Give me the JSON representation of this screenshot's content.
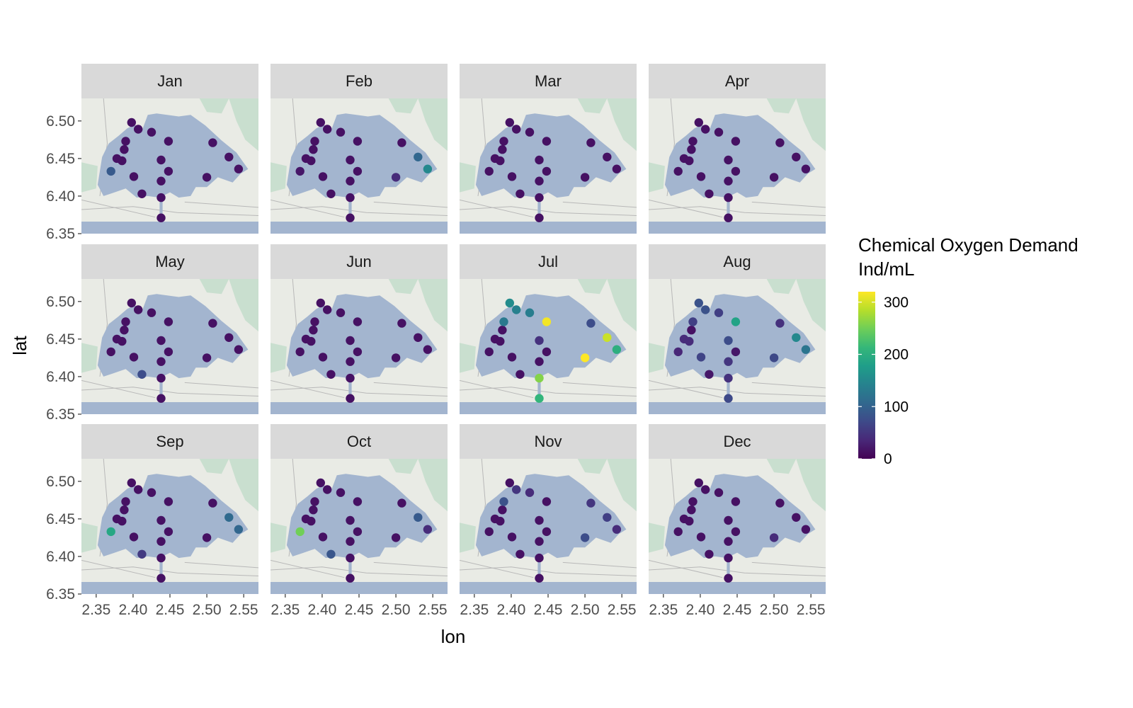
{
  "chart_data": {
    "type": "scatter",
    "facet_by": "month",
    "panels": [
      "Jan",
      "Feb",
      "Mar",
      "Apr",
      "May",
      "Jun",
      "Jul",
      "Aug",
      "Sep",
      "Oct",
      "Nov",
      "Dec"
    ],
    "xlabel": "lon",
    "ylabel": "lat",
    "xlim": [
      2.33,
      2.57
    ],
    "ylim": [
      6.35,
      6.53
    ],
    "x_ticks": [
      2.35,
      2.4,
      2.45,
      2.5,
      2.55
    ],
    "x_tick_labels": [
      "2.35",
      "2.40",
      "2.45",
      "2.50",
      "2.55"
    ],
    "y_ticks": [
      6.35,
      6.4,
      6.45,
      6.5
    ],
    "y_tick_labels": [
      "6.35",
      "6.40",
      "6.45",
      "6.50"
    ],
    "basemap": "lagoon",
    "colors": {
      "water": "#a3b5cf",
      "land": "#e9ebe5",
      "vegetation": "#c9dfcf",
      "strip": "#d9d9d9",
      "viridis": [
        "#440154",
        "#482878",
        "#3e4a89",
        "#31688e",
        "#26828e",
        "#1f9e89",
        "#35b779",
        "#6ece58",
        "#b5de2b",
        "#fde725"
      ]
    },
    "stations": [
      {
        "lon": 2.37,
        "lat": 6.433
      },
      {
        "lon": 2.378,
        "lat": 6.45
      },
      {
        "lon": 2.385,
        "lat": 6.447
      },
      {
        "lon": 2.388,
        "lat": 6.462
      },
      {
        "lon": 2.39,
        "lat": 6.473
      },
      {
        "lon": 2.398,
        "lat": 6.498
      },
      {
        "lon": 2.407,
        "lat": 6.489
      },
      {
        "lon": 2.401,
        "lat": 6.426
      },
      {
        "lon": 2.412,
        "lat": 6.403
      },
      {
        "lon": 2.425,
        "lat": 6.485
      },
      {
        "lon": 2.438,
        "lat": 6.448
      },
      {
        "lon": 2.448,
        "lat": 6.473
      },
      {
        "lon": 2.448,
        "lat": 6.433
      },
      {
        "lon": 2.438,
        "lat": 6.42
      },
      {
        "lon": 2.438,
        "lat": 6.398
      },
      {
        "lon": 2.438,
        "lat": 6.371
      },
      {
        "lon": 2.5,
        "lat": 6.425
      },
      {
        "lon": 2.508,
        "lat": 6.471
      },
      {
        "lon": 2.53,
        "lat": 6.452
      },
      {
        "lon": 2.543,
        "lat": 6.436
      }
    ],
    "values": {
      "Jan": [
        90,
        15,
        15,
        15,
        15,
        15,
        15,
        15,
        15,
        15,
        15,
        15,
        15,
        15,
        15,
        15,
        15,
        15,
        15,
        15
      ],
      "Feb": [
        20,
        15,
        15,
        15,
        15,
        15,
        15,
        15,
        15,
        15,
        15,
        15,
        15,
        15,
        15,
        15,
        40,
        15,
        105,
        150
      ],
      "Mar": [
        15,
        15,
        15,
        15,
        15,
        15,
        15,
        15,
        15,
        15,
        15,
        15,
        15,
        15,
        15,
        15,
        15,
        15,
        15,
        15
      ],
      "Apr": [
        15,
        15,
        15,
        15,
        15,
        15,
        15,
        15,
        15,
        15,
        15,
        15,
        15,
        15,
        15,
        15,
        15,
        15,
        15,
        15
      ],
      "May": [
        15,
        15,
        15,
        15,
        15,
        15,
        15,
        15,
        75,
        15,
        15,
        15,
        15,
        15,
        15,
        15,
        15,
        15,
        15,
        15
      ],
      "Jun": [
        15,
        15,
        15,
        15,
        15,
        15,
        15,
        15,
        15,
        15,
        15,
        15,
        15,
        15,
        15,
        15,
        15,
        15,
        15,
        15
      ],
      "Jul": [
        15,
        15,
        15,
        15,
        130,
        155,
        140,
        15,
        15,
        135,
        45,
        315,
        15,
        15,
        260,
        210,
        320,
        75,
        295,
        200
      ],
      "Aug": [
        35,
        40,
        40,
        15,
        60,
        80,
        80,
        65,
        20,
        60,
        75,
        185,
        20,
        50,
        45,
        70,
        70,
        45,
        150,
        125
      ],
      "Sep": [
        190,
        15,
        15,
        15,
        15,
        15,
        15,
        15,
        55,
        15,
        15,
        15,
        15,
        15,
        15,
        15,
        15,
        15,
        110,
        105
      ],
      "Oct": [
        250,
        15,
        15,
        15,
        15,
        15,
        15,
        15,
        85,
        15,
        15,
        15,
        15,
        15,
        15,
        15,
        15,
        15,
        90,
        40
      ],
      "Nov": [
        15,
        15,
        15,
        15,
        80,
        15,
        50,
        15,
        15,
        40,
        15,
        15,
        15,
        15,
        15,
        15,
        75,
        50,
        60,
        40
      ],
      "Dec": [
        15,
        15,
        15,
        15,
        15,
        15,
        15,
        15,
        15,
        15,
        15,
        15,
        15,
        15,
        15,
        15,
        40,
        15,
        15,
        15
      ]
    },
    "legend": {
      "title_line1": "Chemical Oxygen Demand",
      "title_line2": "Ind/mL",
      "range": [
        0,
        320
      ],
      "ticks": [
        0,
        100,
        200,
        300
      ],
      "tick_labels": [
        "0",
        "100",
        "200",
        "300"
      ],
      "placement": "right"
    }
  }
}
